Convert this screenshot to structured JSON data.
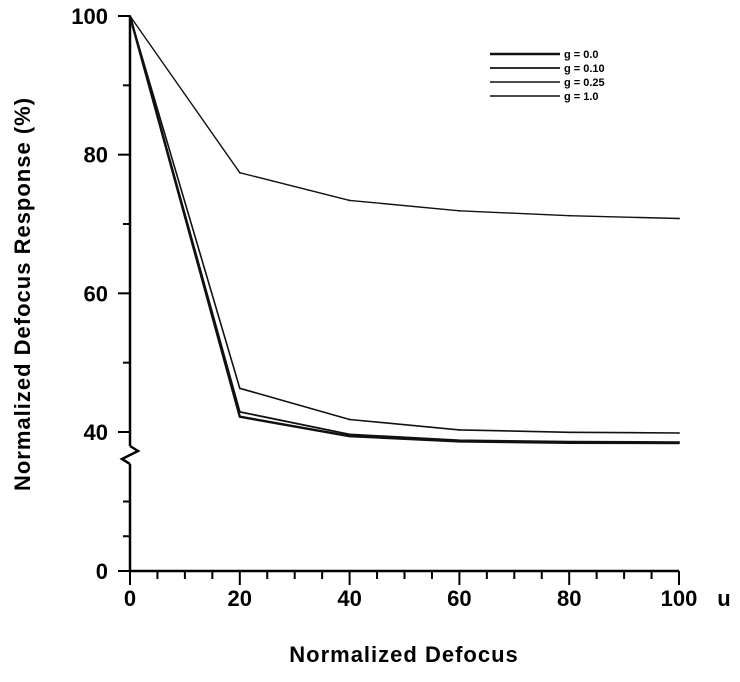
{
  "chart_data": {
    "type": "line",
    "title": "",
    "xlabel": "Normalized  Defocus",
    "ylabel": "Normalized  Defocus  Response  (%)",
    "x_unit_label": "u",
    "xlim": [
      0,
      100
    ],
    "ylim_display": [
      0,
      100
    ],
    "y_axis_break": "between 0 and 40",
    "x_ticks": [
      0,
      20,
      40,
      60,
      80,
      100
    ],
    "y_ticks": [
      0,
      40,
      60,
      80,
      100
    ],
    "grid": false,
    "legend_position": "top-right",
    "x": [
      0,
      20,
      40,
      60,
      80,
      100
    ],
    "series": [
      {
        "name": "g = 0.0",
        "values": [
          100,
          42.2,
          38.8,
          37.3,
          36.9,
          36.8
        ]
      },
      {
        "name": "g = 0.10",
        "values": [
          100,
          42.9,
          39.3,
          37.6,
          37.2,
          37.1
        ]
      },
      {
        "name": "g = 0.25",
        "values": [
          100,
          46.3,
          41.8,
          40.3,
          39.9,
          39.7
        ]
      },
      {
        "name": "g = 1.0",
        "values": [
          100,
          77.4,
          73.4,
          71.9,
          71.2,
          70.8
        ]
      }
    ],
    "colors": {
      "line": "#111111",
      "axis": "#000000",
      "background": "#ffffff"
    }
  }
}
